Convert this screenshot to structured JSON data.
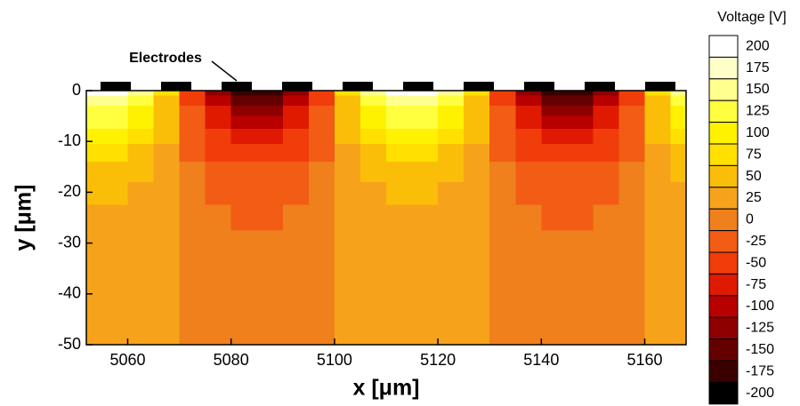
{
  "chart_data": {
    "type": "contour",
    "xlabel": "x [μm]",
    "ylabel": "y [μm]",
    "annotation": "Electrodes",
    "xlim": [
      5052,
      5168
    ],
    "ylim": [
      -50,
      0
    ],
    "xticks": [
      5060,
      5080,
      5100,
      5120,
      5140,
      5160
    ],
    "yticks": [
      0,
      -10,
      -20,
      -30,
      -40,
      -50
    ],
    "x": [
      5052.5,
      5057.5,
      5062.5,
      5067.5,
      5072.5,
      5077.5,
      5082.5,
      5087.5,
      5092.5,
      5097.5,
      5102.5,
      5107.5,
      5112.5,
      5117.5,
      5122.5,
      5127.5,
      5132.5,
      5137.5,
      5142.5,
      5147.5,
      5152.5,
      5157.5,
      5162.5,
      5167.5
    ],
    "y": [
      0,
      -2,
      -4,
      -6,
      -9,
      -12,
      -16,
      -20,
      -25,
      -30,
      -40,
      -50
    ],
    "z": [
      [
        194,
        194,
        147,
        67,
        -47,
        -127,
        -174,
        -174,
        -127,
        -47,
        67,
        147,
        194,
        194,
        147,
        67,
        -47,
        -127,
        -174,
        -174,
        -127,
        -47,
        67,
        147
      ],
      [
        162,
        162,
        124,
        58,
        -38,
        -104,
        -142,
        -142,
        -104,
        -38,
        58,
        124,
        162,
        162,
        124,
        58,
        -38,
        -104,
        -142,
        -142,
        -104,
        -38,
        58,
        124
      ],
      [
        137,
        137,
        105,
        51,
        -31,
        -85,
        -117,
        -117,
        -85,
        -31,
        51,
        105,
        137,
        137,
        105,
        51,
        -31,
        -85,
        -117,
        -117,
        -85,
        -31,
        51,
        105
      ],
      [
        115,
        115,
        90,
        46,
        -26,
        -70,
        -95,
        -95,
        -70,
        -26,
        46,
        90,
        115,
        115,
        90,
        46,
        -26,
        -70,
        -95,
        -95,
        -70,
        -26,
        46,
        90
      ],
      [
        91,
        91,
        72,
        39,
        -19,
        -52,
        -71,
        -71,
        -52,
        -19,
        39,
        72,
        91,
        91,
        72,
        39,
        -19,
        -52,
        -71,
        -71,
        -52,
        -19,
        39,
        72
      ],
      [
        72,
        72,
        58,
        34,
        -14,
        -38,
        -52,
        -52,
        -38,
        -14,
        34,
        58,
        72,
        72,
        58,
        34,
        -14,
        -38,
        -52,
        -52,
        -38,
        -14,
        34,
        58
      ],
      [
        55,
        55,
        46,
        29,
        -9,
        -26,
        -35,
        -35,
        -26,
        -9,
        29,
        46,
        55,
        55,
        46,
        29,
        -9,
        -26,
        -35,
        -35,
        -26,
        -9,
        29,
        46
      ],
      [
        43,
        43,
        37,
        26,
        -6,
        -17,
        -23,
        -23,
        -17,
        -6,
        26,
        37,
        43,
        43,
        37,
        26,
        -6,
        -17,
        -23,
        -23,
        -17,
        -6,
        26,
        37
      ],
      [
        34,
        34,
        30,
        24,
        -4,
        -10,
        -14,
        -14,
        -10,
        -4,
        24,
        30,
        34,
        34,
        30,
        24,
        -4,
        -10,
        -14,
        -14,
        -10,
        -4,
        24,
        30
      ],
      [
        29,
        29,
        26,
        22,
        -2,
        -6,
        -9,
        -9,
        -6,
        -2,
        22,
        26,
        29,
        29,
        26,
        22,
        -2,
        -6,
        -9,
        -9,
        -6,
        -2,
        22,
        26
      ],
      [
        23,
        23,
        22,
        21,
        -1,
        -2,
        -3,
        -3,
        -2,
        -1,
        21,
        22,
        23,
        23,
        22,
        21,
        -1,
        -2,
        -3,
        -3,
        -2,
        -1,
        21,
        22
      ],
      [
        21,
        21,
        21,
        20,
        0,
        -1,
        -1,
        -1,
        -1,
        0,
        20,
        21,
        21,
        21,
        21,
        20,
        0,
        -1,
        -1,
        -1,
        -1,
        0,
        20,
        21
      ]
    ],
    "colorbar": {
      "title": "Voltage [V]",
      "ticks": [
        200,
        175,
        150,
        125,
        100,
        75,
        50,
        25,
        0,
        -25,
        -50,
        -75,
        -100,
        -125,
        -150,
        -175,
        -200
      ],
      "colors": [
        "#ffffff",
        "#ffffc8",
        "#ffff90",
        "#ffff40",
        "#fff200",
        "#ffe000",
        "#fbbe08",
        "#f6a31b",
        "#ef801c",
        "#f25c14",
        "#f03d0a",
        "#e01a00",
        "#b80000",
        "#8e0000",
        "#640000",
        "#3a0000",
        "#000000"
      ]
    }
  }
}
